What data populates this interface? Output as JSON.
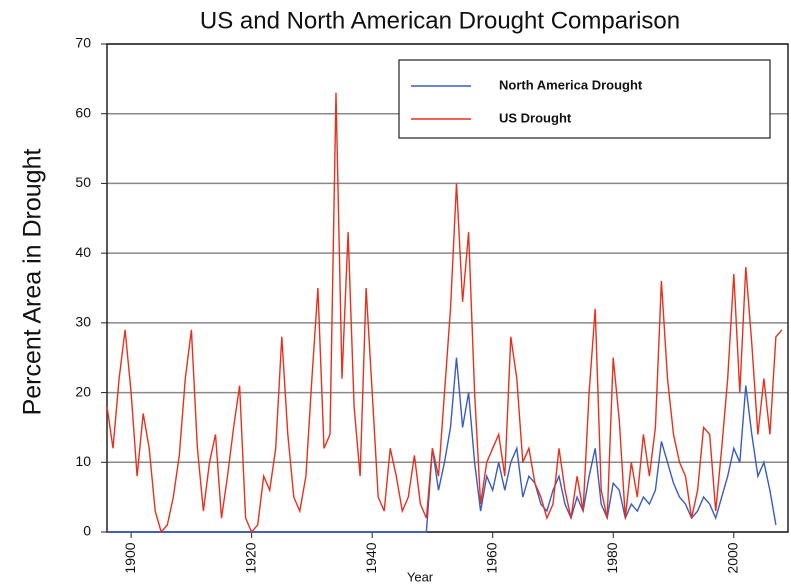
{
  "chart_data": {
    "type": "line",
    "title": "US and North American Drought Comparison",
    "x_label": "Year",
    "y_label": "Percent  Area in Drought",
    "x": [
      1896,
      1897,
      1898,
      1899,
      1900,
      1901,
      1902,
      1903,
      1904,
      1905,
      1906,
      1907,
      1908,
      1909,
      1910,
      1911,
      1912,
      1913,
      1914,
      1915,
      1916,
      1917,
      1918,
      1919,
      1920,
      1921,
      1922,
      1923,
      1924,
      1925,
      1926,
      1927,
      1928,
      1929,
      1930,
      1931,
      1932,
      1933,
      1934,
      1935,
      1936,
      1937,
      1938,
      1939,
      1940,
      1941,
      1942,
      1943,
      1944,
      1945,
      1946,
      1947,
      1948,
      1949,
      1950,
      1951,
      1952,
      1953,
      1954,
      1955,
      1956,
      1957,
      1958,
      1959,
      1960,
      1961,
      1962,
      1963,
      1964,
      1965,
      1966,
      1967,
      1968,
      1969,
      1970,
      1971,
      1972,
      1973,
      1974,
      1975,
      1976,
      1977,
      1978,
      1979,
      1980,
      1981,
      1982,
      1983,
      1984,
      1985,
      1986,
      1987,
      1988,
      1989,
      1990,
      1991,
      1992,
      1993,
      1994,
      1995,
      1996,
      1997,
      1998,
      1999,
      2000,
      2001,
      2002,
      2003,
      2004,
      2005,
      2006,
      2007,
      2008
    ],
    "series": [
      {
        "name": "North America Drought",
        "color": "#3a5bbf",
        "values": [
          0,
          0,
          0,
          0,
          0,
          0,
          0,
          0,
          0,
          0,
          0,
          0,
          0,
          0,
          0,
          0,
          0,
          0,
          0,
          0,
          0,
          0,
          0,
          0,
          0,
          0,
          0,
          0,
          0,
          0,
          0,
          0,
          0,
          0,
          0,
          0,
          0,
          0,
          0,
          0,
          0,
          0,
          0,
          0,
          0,
          0,
          0,
          0,
          0,
          0,
          0,
          0,
          0,
          0,
          12,
          6,
          10,
          15,
          25,
          15,
          20,
          10,
          3,
          8,
          6,
          10,
          6,
          10,
          12,
          5,
          8,
          7,
          4,
          3,
          6,
          8,
          4,
          2,
          5,
          3,
          8,
          12,
          4,
          2,
          7,
          6,
          2,
          4,
          3,
          5,
          4,
          6,
          13,
          10,
          7,
          5,
          4,
          2,
          3,
          5,
          4,
          2,
          5,
          8,
          12,
          10,
          21,
          14,
          8,
          10,
          6,
          1,
          null
        ]
      },
      {
        "name": "US Drought",
        "color": "#e8301e",
        "values": [
          18,
          12,
          22,
          29,
          20,
          8,
          17,
          12,
          3,
          0,
          1,
          5,
          11,
          22,
          29,
          12,
          3,
          10,
          14,
          2,
          8,
          15,
          21,
          2,
          0,
          1,
          8,
          6,
          12,
          28,
          14,
          5,
          3,
          8,
          22,
          35,
          12,
          14,
          63,
          22,
          43,
          18,
          8,
          35,
          20,
          5,
          3,
          12,
          8,
          3,
          5,
          11,
          4,
          2,
          12,
          8,
          20,
          32,
          50,
          33,
          43,
          20,
          4,
          10,
          12,
          14,
          8,
          28,
          22,
          10,
          12,
          7,
          5,
          2,
          4,
          12,
          6,
          2,
          8,
          3,
          20,
          32,
          6,
          2,
          25,
          16,
          2,
          10,
          5,
          14,
          8,
          15,
          36,
          22,
          14,
          10,
          8,
          2,
          6,
          15,
          14,
          3,
          12,
          22,
          37,
          20,
          38,
          27,
          14,
          22,
          14,
          28,
          29
        ]
      }
    ],
    "xlim": [
      1896,
      2009
    ],
    "ylim": [
      0,
      70
    ],
    "xticks": [
      1900,
      1920,
      1940,
      1960,
      1980,
      2000
    ],
    "yticks": [
      0,
      10,
      20,
      30,
      40,
      50,
      60,
      70
    ],
    "grid": true,
    "legend": "top-right"
  }
}
